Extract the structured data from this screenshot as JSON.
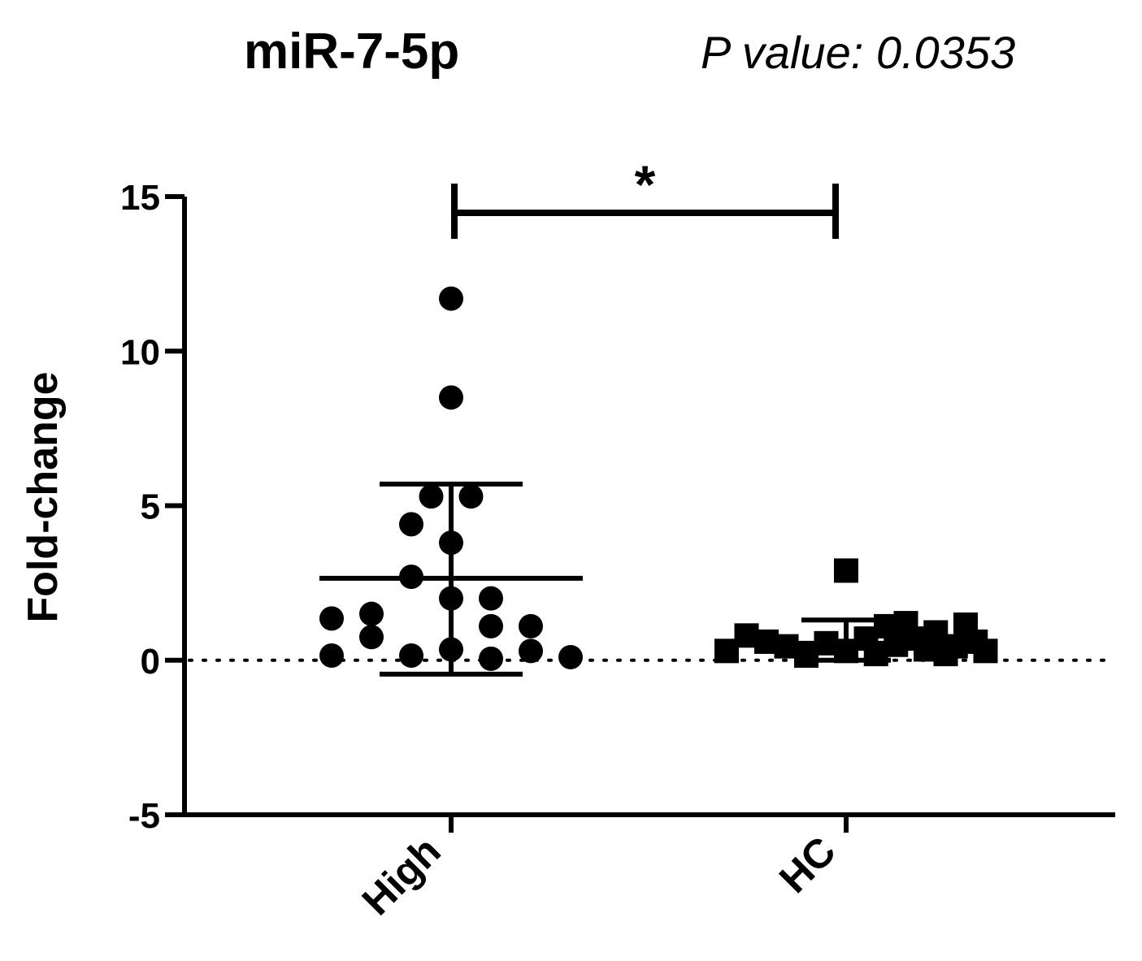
{
  "chart_data": {
    "type": "scatter",
    "title": "miR-7-5p",
    "annotation": "P value: 0.0353",
    "ylabel": "Fold-change",
    "xlabel": "",
    "categories": [
      "High",
      "HC"
    ],
    "ylim": [
      -5,
      15
    ],
    "yticks": [
      -5,
      0,
      5,
      10,
      15
    ],
    "reference_line": 0,
    "significance": {
      "groups": [
        "High",
        "HC"
      ],
      "label": "*"
    },
    "series": [
      {
        "category": "High",
        "marker": "circle",
        "mean": 2.65,
        "sd_upper": 5.7,
        "sd_lower": -0.45,
        "points": [
          {
            "dx": 0,
            "y": 11.7
          },
          {
            "dx": 0,
            "y": 8.5
          },
          {
            "dx": -1,
            "y": 5.3
          },
          {
            "dx": 1,
            "y": 5.3
          },
          {
            "dx": -2,
            "y": 4.4
          },
          {
            "dx": 0,
            "y": 3.8
          },
          {
            "dx": -2,
            "y": 2.7
          },
          {
            "dx": 0,
            "y": 2.0
          },
          {
            "dx": 2,
            "y": 2.0
          },
          {
            "dx": -4,
            "y": 1.5
          },
          {
            "dx": -6,
            "y": 1.35
          },
          {
            "dx": 2,
            "y": 1.1
          },
          {
            "dx": 4,
            "y": 1.1
          },
          {
            "dx": -4,
            "y": 0.75
          },
          {
            "dx": 0,
            "y": 0.35
          },
          {
            "dx": 4,
            "y": 0.3
          },
          {
            "dx": -6,
            "y": 0.15
          },
          {
            "dx": -2,
            "y": 0.15
          },
          {
            "dx": 2,
            "y": 0.05
          },
          {
            "dx": 6,
            "y": 0.1
          }
        ]
      },
      {
        "category": "HC",
        "marker": "square",
        "mean": 0.55,
        "sd_upper": 1.3,
        "sd_lower": 0.0,
        "points": [
          {
            "dx": 0,
            "y": 2.9
          },
          {
            "dx": -6,
            "y": 0.3
          },
          {
            "dx": -5,
            "y": 0.8
          },
          {
            "dx": -4,
            "y": 0.6
          },
          {
            "dx": -3,
            "y": 0.45
          },
          {
            "dx": -2,
            "y": 0.15
          },
          {
            "dx": -1,
            "y": 0.55
          },
          {
            "dx": 0,
            "y": 0.3
          },
          {
            "dx": 1,
            "y": 0.7
          },
          {
            "dx": 1.5,
            "y": 0.2
          },
          {
            "dx": 2,
            "y": 1.1
          },
          {
            "dx": 2.5,
            "y": 0.5
          },
          {
            "dx": 3,
            "y": 1.2
          },
          {
            "dx": 3.5,
            "y": 0.7
          },
          {
            "dx": 4,
            "y": 0.35
          },
          {
            "dx": 4.5,
            "y": 0.9
          },
          {
            "dx": 5,
            "y": 0.2
          },
          {
            "dx": 5.5,
            "y": 0.45
          },
          {
            "dx": 6,
            "y": 1.15
          },
          {
            "dx": 6.5,
            "y": 0.6
          },
          {
            "dx": 7,
            "y": 0.3
          }
        ]
      }
    ],
    "colors": {
      "marker": "#000000",
      "axis": "#000000",
      "ylabel": "#000000"
    }
  }
}
